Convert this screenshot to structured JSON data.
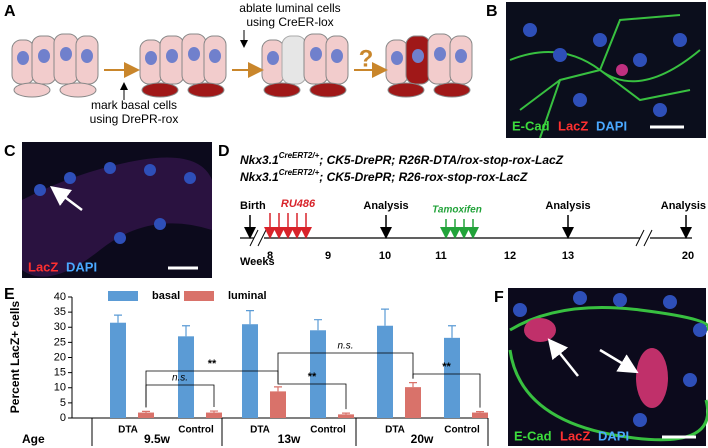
{
  "panel_a": {
    "label": "A",
    "ablate_line1": "ablate luminal cells",
    "ablate_line2": "using CreER-lox",
    "mark_line1": "mark basal cells",
    "mark_line2": "using DrePR-rox",
    "question": "?"
  },
  "panel_b": {
    "label": "B",
    "stain1": "E-Cad",
    "stain2": "LacZ",
    "stain3": "DAPI"
  },
  "panel_c": {
    "label": "C",
    "stain1": "LacZ",
    "stain2": "DAPI"
  },
  "panel_d": {
    "label": "D",
    "genotype1": {
      "gene": "Nkx3.1",
      "sup": "CreERT2/+",
      "rest": "; CK5-DrePR; R26R-DTA/rox-stop-rox-LacZ"
    },
    "genotype2": {
      "gene": "Nkx3.1",
      "sup": "CreERT2/+",
      "rest": "; CK5-DrePR; R26-rox-stop-rox-LacZ"
    },
    "events": [
      "Birth",
      "RU486",
      "Analysis",
      "Tamoxifen",
      "Analysis",
      "Analysis"
    ],
    "weeks_label": "Weeks",
    "weeks": [
      "8",
      "9",
      "10",
      "11",
      "12",
      "13",
      "20"
    ]
  },
  "chart_data": {
    "type": "bar",
    "label": "E",
    "y_label": "Percent LacZ+ cells",
    "categories": [
      "DTA",
      "Control",
      "DTA",
      "Control",
      "DTA",
      "Control"
    ],
    "group_title": "Age",
    "groups": [
      "9.5w",
      "13w",
      "20w"
    ],
    "series": [
      {
        "name": "basal",
        "color": "#5b9bd5",
        "values": [
          31.5,
          27,
          31,
          29,
          30.5,
          26.5
        ],
        "errors": [
          2.5,
          3.5,
          4.5,
          3.5,
          5.5,
          4
        ]
      },
      {
        "name": "luminal",
        "color": "#d9726a",
        "values": [
          1.8,
          1.8,
          8.8,
          1.2,
          10.2,
          1.8
        ],
        "errors": [
          0.4,
          0.5,
          1.5,
          0.4,
          1.5,
          0.3
        ]
      }
    ],
    "annotations": [
      "n.s.",
      "**",
      "**",
      "n.s.",
      "**"
    ],
    "ylim": [
      0,
      40
    ],
    "yticks": [
      0,
      5,
      10,
      15,
      20,
      25,
      30,
      35,
      40
    ]
  },
  "panel_f": {
    "label": "F",
    "stain1": "E-Cad",
    "stain2": "LacZ",
    "stain3": "DAPI"
  }
}
